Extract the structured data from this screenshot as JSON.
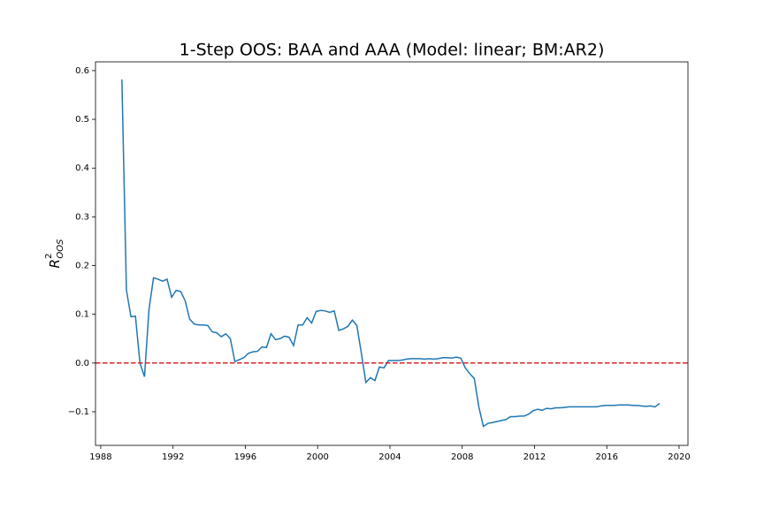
{
  "chart_data": {
    "type": "line",
    "title": "1-Step OOS: BAA and AAA (Model: linear; BM:AR2)",
    "ylabel": {
      "base": "R",
      "sup": "2",
      "sub": "OOS"
    },
    "x": [
      1989.17,
      1989.42,
      1989.67,
      1989.92,
      1990.17,
      1990.42,
      1990.67,
      1990.92,
      1991.17,
      1991.42,
      1991.67,
      1991.92,
      1992.17,
      1992.42,
      1992.67,
      1992.92,
      1993.17,
      1993.42,
      1993.67,
      1993.92,
      1994.17,
      1994.42,
      1994.67,
      1994.92,
      1995.17,
      1995.42,
      1995.67,
      1995.92,
      1996.17,
      1996.42,
      1996.67,
      1996.92,
      1997.17,
      1997.42,
      1997.67,
      1997.92,
      1998.17,
      1998.42,
      1998.67,
      1998.92,
      1999.17,
      1999.42,
      1999.67,
      1999.92,
      2000.17,
      2000.42,
      2000.67,
      2000.92,
      2001.17,
      2001.42,
      2001.67,
      2001.92,
      2002.17,
      2002.42,
      2002.67,
      2002.92,
      2003.17,
      2003.42,
      2003.67,
      2003.92,
      2004.17,
      2004.42,
      2004.67,
      2004.92,
      2005.17,
      2005.42,
      2005.67,
      2005.92,
      2006.17,
      2006.42,
      2006.67,
      2006.92,
      2007.17,
      2007.42,
      2007.67,
      2007.92,
      2008.17,
      2008.42,
      2008.67,
      2008.92,
      2009.17,
      2009.42,
      2009.67,
      2009.92,
      2010.17,
      2010.42,
      2010.67,
      2010.92,
      2011.17,
      2011.42,
      2011.67,
      2011.92,
      2012.17,
      2012.42,
      2012.67,
      2012.92,
      2013.17,
      2013.42,
      2013.67,
      2013.92,
      2014.17,
      2014.42,
      2014.67,
      2014.92,
      2015.17,
      2015.42,
      2015.67,
      2015.92,
      2016.17,
      2016.42,
      2016.67,
      2016.92,
      2017.17,
      2017.42,
      2017.67,
      2017.92,
      2018.17,
      2018.42,
      2018.67,
      2018.92
    ],
    "series": [
      {
        "color": "#1f77b4",
        "values": [
          0.582,
          0.15,
          0.095,
          0.096,
          0.0,
          -0.028,
          0.11,
          0.175,
          0.172,
          0.168,
          0.172,
          0.135,
          0.149,
          0.147,
          0.128,
          0.09,
          0.08,
          0.078,
          0.078,
          0.077,
          0.064,
          0.062,
          0.054,
          0.06,
          0.05,
          0.003,
          0.007,
          0.011,
          0.02,
          0.023,
          0.024,
          0.033,
          0.032,
          0.06,
          0.048,
          0.05,
          0.055,
          0.053,
          0.036,
          0.078,
          0.078,
          0.093,
          0.082,
          0.106,
          0.108,
          0.107,
          0.104,
          0.107,
          0.067,
          0.07,
          0.075,
          0.088,
          0.077,
          0.02,
          -0.04,
          -0.03,
          -0.036,
          -0.008,
          -0.01,
          0.005,
          0.005,
          0.005,
          0.006,
          0.008,
          0.009,
          0.009,
          0.009,
          0.008,
          0.009,
          0.008,
          0.009,
          0.011,
          0.011,
          0.01,
          0.012,
          0.01,
          -0.01,
          -0.022,
          -0.032,
          -0.09,
          -0.13,
          -0.124,
          -0.122,
          -0.12,
          -0.118,
          -0.116,
          -0.11,
          -0.11,
          -0.109,
          -0.109,
          -0.105,
          -0.098,
          -0.095,
          -0.097,
          -0.093,
          -0.094,
          -0.092,
          -0.092,
          -0.091,
          -0.09,
          -0.09,
          -0.09,
          -0.09,
          -0.09,
          -0.09,
          -0.09,
          -0.088,
          -0.087,
          -0.087,
          -0.087,
          -0.086,
          -0.086,
          -0.086,
          -0.087,
          -0.087,
          -0.088,
          -0.089,
          -0.088,
          -0.09,
          -0.083
        ]
      }
    ],
    "hline": {
      "value": 0,
      "color": "#d62728",
      "style": "dashed"
    },
    "xlim": [
      1987.71,
      2020.49
    ],
    "xticks": [
      1988,
      1992,
      1996,
      2000,
      2004,
      2008,
      2012,
      2016,
      2020
    ],
    "ylim": [
      -0.169,
      0.618
    ],
    "yticks": [
      {
        "value": -0.1,
        "label": "−0.1"
      },
      {
        "value": 0,
        "label": "0.0"
      },
      0.1,
      0.2,
      0.3,
      0.4,
      0.5,
      0.6
    ]
  }
}
